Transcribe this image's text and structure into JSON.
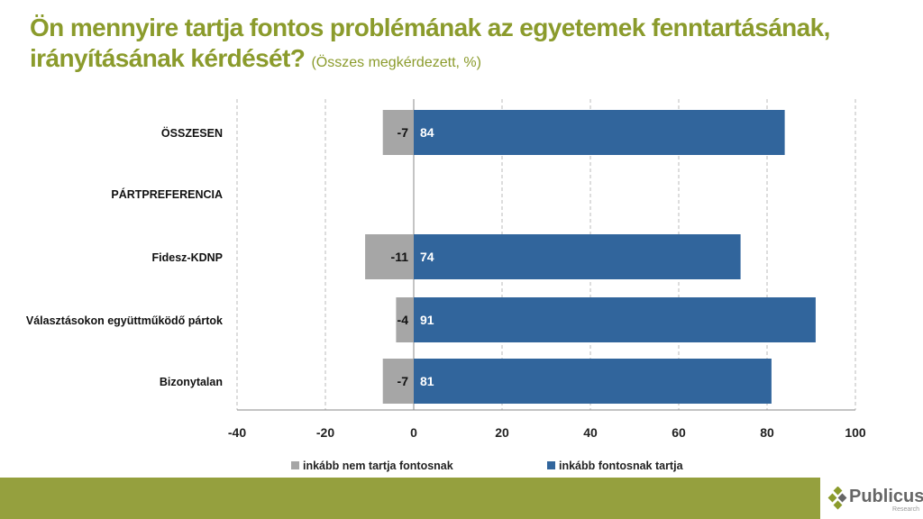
{
  "title": {
    "main": "Ön mennyire tartja fontos problémának az egyetemek fenntartásának, irányításának kérdését?",
    "sub": "(Összes megkérdezett, %)"
  },
  "colors": {
    "title": "#8b9b2c",
    "positive": "#31659c",
    "negative": "#a6a6a6",
    "footer": "#95a03e"
  },
  "chart_data": {
    "type": "bar",
    "orientation": "horizontal",
    "stacked": "diverging",
    "categories": [
      "ÖSSZESEN",
      "PÁRTPREFERENCIA",
      "Fidesz-KDNP",
      "Választásokon együttműködő pártok",
      "Bizonytalan"
    ],
    "series": [
      {
        "name": "inkább nem tartja fontosnak",
        "color": "#a6a6a6",
        "values": [
          -7,
          null,
          -11,
          -4,
          -7
        ]
      },
      {
        "name": "inkább fontosnak tartja",
        "color": "#31659c",
        "values": [
          84,
          null,
          74,
          91,
          81
        ]
      }
    ],
    "xlim": [
      -40,
      100
    ],
    "xticks": [
      -40,
      -20,
      0,
      20,
      40,
      60,
      80,
      100
    ],
    "grid": true,
    "legend": "bottom"
  },
  "logo": {
    "name": "Publicus",
    "tagline": "Research"
  }
}
